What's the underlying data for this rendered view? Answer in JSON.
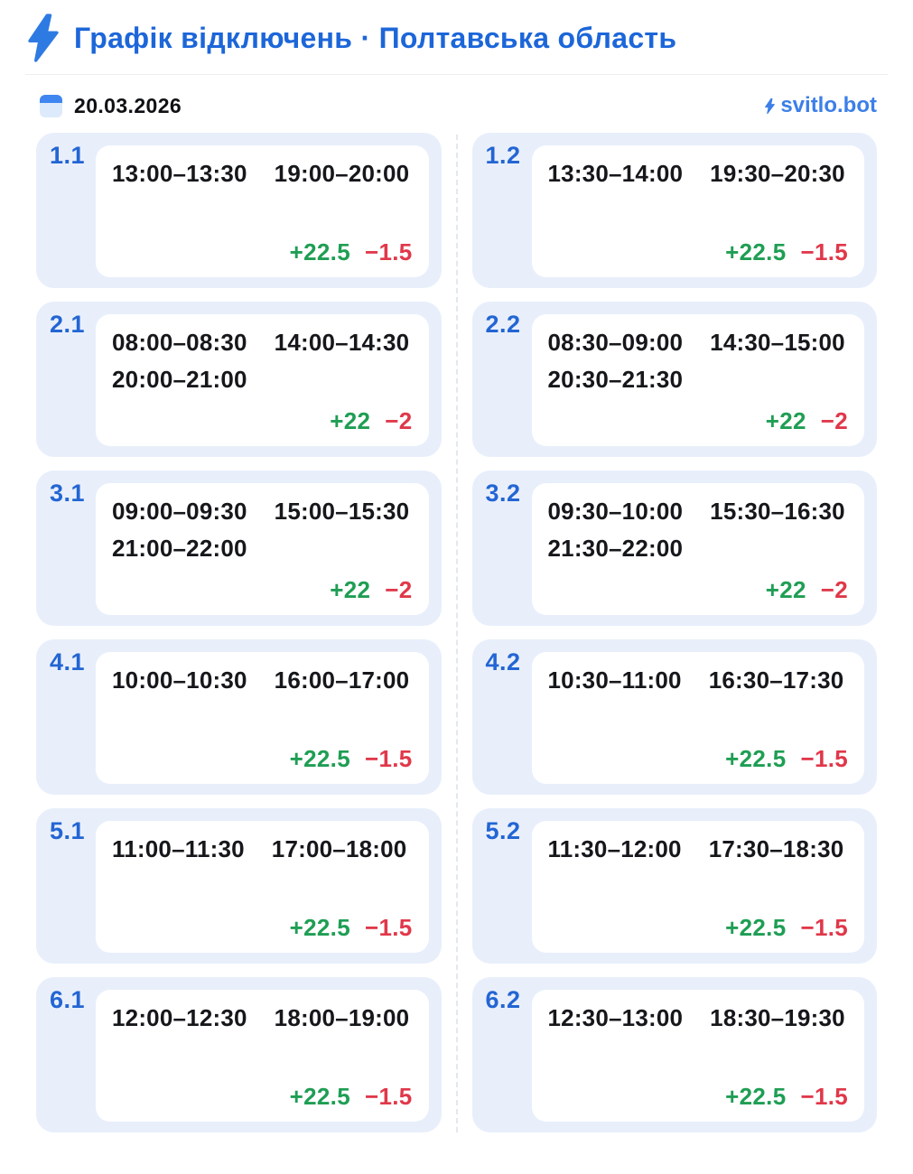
{
  "header": {
    "title": "Графік відключень · Полтавська область",
    "title_icon": "lightning-icon"
  },
  "subheader": {
    "date": "20.03.2026",
    "date_icon": "calendar-icon",
    "brand": "svitlo.bot",
    "brand_icon": "lightning-icon"
  },
  "colors": {
    "title_blue": "#1c66d9",
    "group_label_blue": "#2365d3",
    "brand_blue": "#3c7fe8",
    "card_background": "#e8effb",
    "power_on_green": "#1f9e54",
    "power_off_red": "#e0384a",
    "bolt_blue": "#2e7ae3",
    "calendar_top_blue": "#3f86f0",
    "calendar_body_blue": "#dceafb"
  },
  "groups": [
    {
      "id": "1.1",
      "times": [
        "13:00–13:30",
        "19:00–20:00"
      ],
      "power_on": "+22.5",
      "power_off": "−1.5"
    },
    {
      "id": "1.2",
      "times": [
        "13:30–14:00",
        "19:30–20:30"
      ],
      "power_on": "+22.5",
      "power_off": "−1.5"
    },
    {
      "id": "2.1",
      "times": [
        "08:00–08:30",
        "14:00–14:30",
        "20:00–21:00"
      ],
      "power_on": "+22",
      "power_off": "−2"
    },
    {
      "id": "2.2",
      "times": [
        "08:30–09:00",
        "14:30–15:00",
        "20:30–21:30"
      ],
      "power_on": "+22",
      "power_off": "−2"
    },
    {
      "id": "3.1",
      "times": [
        "09:00–09:30",
        "15:00–15:30",
        "21:00–22:00"
      ],
      "power_on": "+22",
      "power_off": "−2"
    },
    {
      "id": "3.2",
      "times": [
        "09:30–10:00",
        "15:30–16:30",
        "21:30–22:00"
      ],
      "power_on": "+22",
      "power_off": "−2"
    },
    {
      "id": "4.1",
      "times": [
        "10:00–10:30",
        "16:00–17:00"
      ],
      "power_on": "+22.5",
      "power_off": "−1.5"
    },
    {
      "id": "4.2",
      "times": [
        "10:30–11:00",
        "16:30–17:30"
      ],
      "power_on": "+22.5",
      "power_off": "−1.5"
    },
    {
      "id": "5.1",
      "times": [
        "11:00–11:30",
        "17:00–18:00"
      ],
      "power_on": "+22.5",
      "power_off": "−1.5"
    },
    {
      "id": "5.2",
      "times": [
        "11:30–12:00",
        "17:30–18:30"
      ],
      "power_on": "+22.5",
      "power_off": "−1.5"
    },
    {
      "id": "6.1",
      "times": [
        "12:00–12:30",
        "18:00–19:00"
      ],
      "power_on": "+22.5",
      "power_off": "−1.5"
    },
    {
      "id": "6.2",
      "times": [
        "12:30–13:00",
        "18:30–19:30"
      ],
      "power_on": "+22.5",
      "power_off": "−1.5"
    }
  ]
}
